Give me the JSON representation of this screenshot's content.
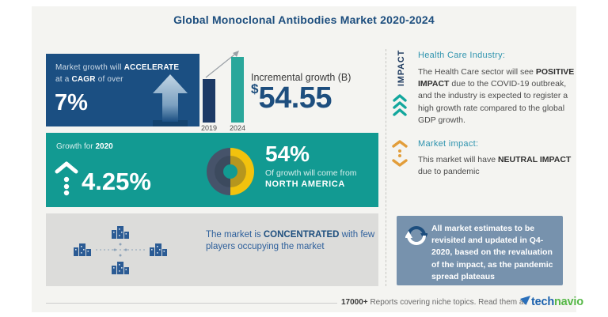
{
  "title": "Global Monoclonal Antibodies Market 2020-2024",
  "cagr_box": {
    "line1_pre": "Market growth will ",
    "line1_bold": "ACCELERATE",
    "line2_pre": "at a ",
    "line2_bold": "CAGR",
    "line2_post": " of over",
    "value": "7%"
  },
  "incremental": {
    "label": "Incremental growth (B)",
    "currency": "$",
    "value": "54.55",
    "year_left": "2019",
    "year_right": "2024"
  },
  "growth_2020": {
    "label_pre": "Growth for ",
    "label_bold": "2020",
    "value": "4.25%"
  },
  "north_america": {
    "value": "54%",
    "line1": "Of growth will come from",
    "line2": "NORTH AMERICA"
  },
  "concentration": {
    "pre": "The market is ",
    "bold": "CONCENTRATED",
    "post": " with few players occupying the market"
  },
  "impact_panel": {
    "vertical_label": "IMPACT",
    "health_heading": "Health Care Industry:",
    "health_pre": "The Health Care sector will see ",
    "health_bold": "POSITIVE IMPACT",
    "health_post": " due to the COVID-19 outbreak, and the industry is expected to register a high growth rate compared to the global GDP growth.",
    "market_heading": "Market impact:",
    "market_pre": "This market will have ",
    "market_bold": "NEUTRAL IMPACT",
    "market_post": " due to pandemic",
    "estimates_note": "All market estimates to be revisited and updated in Q4-2020, based on the revaluation of the impact, as the pandemic spread plateaus"
  },
  "footer": {
    "count": "17000+",
    "text": "Reports covering niche topics. Read them at",
    "logo_tech": "tech",
    "logo_navio": "navio"
  },
  "chart_data": [
    {
      "type": "bar",
      "title": "Incremental growth (B)",
      "categories": [
        "2019",
        "2024"
      ],
      "values": [
        66,
        100
      ],
      "unit": "relative bar height %",
      "annotation": "$54.55 B incremental growth 2019-2024",
      "colors": [
        "#1d3a66",
        "#2aa79b"
      ]
    },
    {
      "type": "pie",
      "title": "Share of growth from North America",
      "labels": [
        "North America",
        "Rest of world"
      ],
      "values": [
        54,
        46
      ],
      "colors": [
        "#f2c20d",
        "#46536a"
      ],
      "inner_colors": [
        "#b5961e",
        "#3c4a5e"
      ]
    }
  ],
  "colors": {
    "title_navy": "#1d4e7e",
    "box_blue": "#1b4f82",
    "teal": "#129a92",
    "bar_2019": "#1d3a66",
    "bar_2024": "#2aa79b",
    "donut_gold": "#f2c20d",
    "donut_slate": "#46536a",
    "panel_gray": "#dcdcda",
    "slate_box": "#7792ad",
    "heading_teal": "#2e93ae",
    "orange_icon": "#e29d3a",
    "logo_blue": "#1b61ad",
    "logo_green": "#56b847"
  },
  "icons": {
    "up-arrow": "large upward arrow (growth)",
    "growth-up": "chevron with dotted tail pointing up",
    "donut": "two-ring donut split slate/gold",
    "buildings-cluster": "four building groups linked by dashed lines",
    "triple-chevron-up": "three stacked upward chevrons (positive impact)",
    "neutral-impact": "up and down chevrons with dots (neutral)",
    "refresh": "circular update arrows",
    "technavio-mark": "blue triangle flag"
  }
}
